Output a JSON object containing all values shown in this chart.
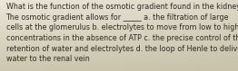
{
  "text": "What is the function of the osmotic gradient found in the kidney?\nThe osmotic gradient allows for _____ a. the filtration of large\ncells at the glomerulus b. electrolytes to move from low to high\nconcentrations in the absence of ATP c. the precise control of the\nretention of water and electrolytes d. the loop of Henle to deliver\nwater to the renal vein",
  "bg_color_topleft": "#eae6da",
  "bg_color_topright": "#ddd8c8",
  "bg_color_bottomleft": "#cdc7b0",
  "bg_color_bottomright": "#c8c2aa",
  "text_color": "#2e2b24",
  "font_size": 5.8,
  "fig_width": 2.62,
  "fig_height": 0.79,
  "dpi": 100
}
